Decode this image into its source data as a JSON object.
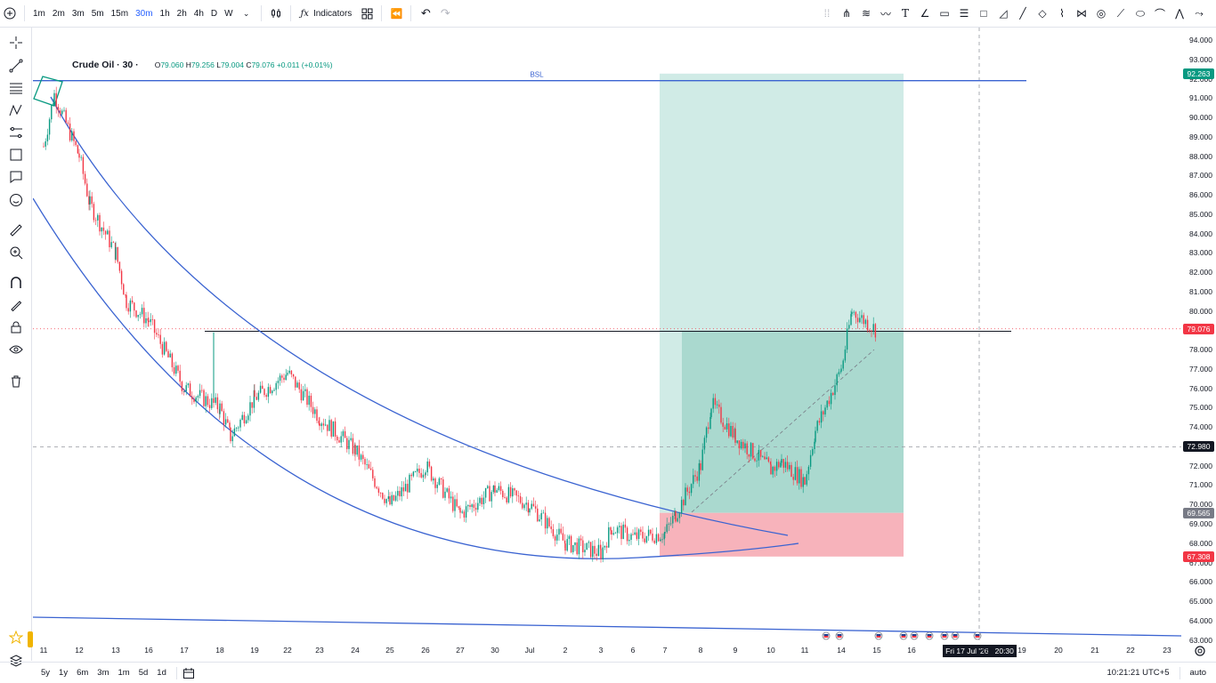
{
  "toolbar": {
    "timeframes": [
      "1m",
      "2m",
      "3m",
      "5m",
      "15m",
      "30m",
      "1h",
      "2h",
      "4h",
      "D",
      "W"
    ],
    "active_timeframe": "30m",
    "indicators_label": "Indicators"
  },
  "legend": {
    "symbol": "Crude Oil · 30 ·",
    "o_label": "O",
    "o_value": "79.060",
    "h_label": "H",
    "h_value": "79.256",
    "l_label": "L",
    "l_value": "79.004",
    "c_label": "C",
    "c_value": "79.076",
    "change": "+0.011 (+0.01%)"
  },
  "chart_labels": {
    "bsl": "BSL"
  },
  "price_axis": {
    "labels": [
      "94.000",
      "93.000",
      "92.000",
      "91.000",
      "90.000",
      "89.000",
      "88.000",
      "87.000",
      "86.000",
      "85.000",
      "84.000",
      "83.000",
      "82.000",
      "81.000",
      "80.000",
      "79.000",
      "78.000",
      "77.000",
      "76.000",
      "75.000",
      "74.000",
      "73.000",
      "72.000",
      "71.000",
      "70.000",
      "69.000",
      "68.000",
      "67.000",
      "66.000",
      "65.000",
      "64.000",
      "63.000"
    ],
    "badge_target": "92.263",
    "badge_last": "79.076",
    "badge_crosshair": "72.980",
    "badge_entry": "69.565",
    "badge_stop": "67.308"
  },
  "time_axis": {
    "labels": [
      "11",
      "12",
      "13",
      "16",
      "17",
      "18",
      "19",
      "22",
      "23",
      "24",
      "25",
      "26",
      "27",
      "30",
      "Jul",
      "2",
      "3",
      "6",
      "7",
      "8",
      "9",
      "10",
      "11",
      "14",
      "15",
      "16",
      "17",
      "18",
      "19",
      "20",
      "21",
      "22",
      "23"
    ],
    "crosshair_date": "Fri 17 Jul '26",
    "crosshair_time": "20:30"
  },
  "bottombar": {
    "ranges": [
      "5y",
      "1y",
      "6m",
      "3m",
      "1m",
      "5d",
      "1d"
    ],
    "clock": "10:21:21 UTC+5",
    "auto_label": "auto"
  },
  "colors": {
    "up": "#089981",
    "down": "#f23645",
    "trend": "#3a63d1",
    "target_zone": "#b7e1d9",
    "stop_zone": "#f7b3bb",
    "accent": "#2962ff"
  },
  "chart_data": {
    "type": "candlestick",
    "symbol": "Crude Oil",
    "interval": "30",
    "ylim": [
      62.7,
      94.4
    ],
    "last_price": 79.076,
    "levels": {
      "bsl": 91.9,
      "target": 92.263,
      "entry": 69.565,
      "stop": 67.308,
      "horizontal": 78.95
    },
    "path_points": [
      [
        "11",
        88.5
      ],
      [
        "11",
        91.2
      ],
      [
        "12",
        88.0
      ],
      [
        "12",
        85.5
      ],
      [
        "13",
        83.0
      ],
      [
        "13",
        80.5
      ],
      [
        "16",
        79.5
      ],
      [
        "17",
        76.0
      ],
      [
        "18",
        75.0
      ],
      [
        "18",
        73.5
      ],
      [
        "19",
        75.5
      ],
      [
        "22",
        76.8
      ],
      [
        "23",
        74.5
      ],
      [
        "24",
        72.8
      ],
      [
        "25",
        70.0
      ],
      [
        "26",
        72.0
      ],
      [
        "27",
        69.5
      ],
      [
        "30",
        70.8
      ],
      [
        "Jul",
        70.0
      ],
      [
        "2",
        68.0
      ],
      [
        "3",
        67.5
      ],
      [
        "3",
        68.8
      ],
      [
        "6",
        68.3
      ],
      [
        "7",
        68.5
      ],
      [
        "7",
        69.5
      ],
      [
        "8",
        72.0
      ],
      [
        "8",
        75.2
      ],
      [
        "9",
        73.5
      ],
      [
        "10",
        71.8
      ],
      [
        "10",
        72.2
      ],
      [
        "11",
        71.2
      ],
      [
        "11",
        73.8
      ],
      [
        "14",
        77.0
      ],
      [
        "14",
        80.0
      ],
      [
        "15",
        79.0
      ]
    ]
  }
}
